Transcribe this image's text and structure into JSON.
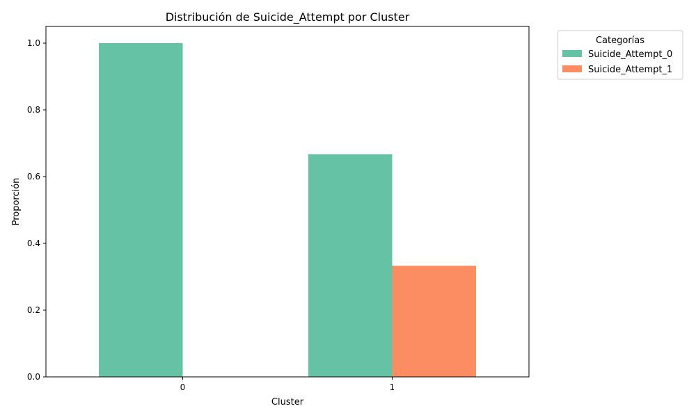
{
  "chart_data": {
    "type": "bar",
    "title": "Distribución de Suicide_Attempt por Cluster",
    "xlabel": "Cluster",
    "ylabel": "Proporción",
    "categories": [
      "0",
      "1"
    ],
    "series": [
      {
        "name": "Suicide_Attempt_0",
        "values": [
          1.0,
          0.667
        ],
        "color": "#66c2a5"
      },
      {
        "name": "Suicide_Attempt_1",
        "values": [
          0.0,
          0.333
        ],
        "color": "#fc8d62"
      }
    ],
    "ylim": [
      0,
      1.05
    ],
    "yticks": [
      0.0,
      0.2,
      0.4,
      0.6,
      0.8,
      1.0
    ],
    "ytick_labels": [
      "0.0",
      "0.2",
      "0.4",
      "0.6",
      "0.8",
      "1.0"
    ],
    "grid": false,
    "legend": {
      "title": "Categorías",
      "placement": "outside upper right"
    }
  }
}
